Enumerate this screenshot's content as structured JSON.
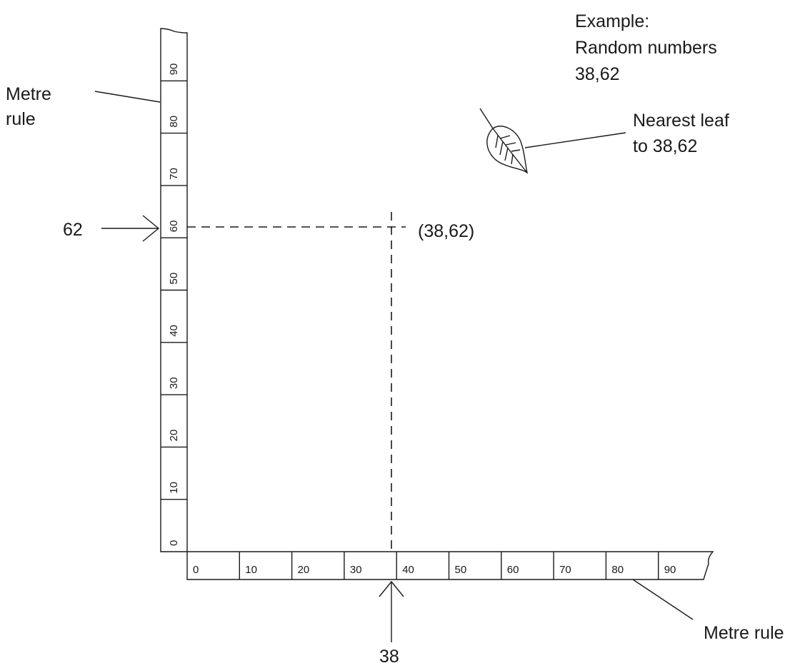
{
  "example": {
    "line1": "Example:",
    "line2": "Random numbers",
    "line3": "38,62"
  },
  "labels": {
    "vertical_rule_line1": "Metre",
    "vertical_rule_line2": "rule",
    "horizontal_rule": "Metre rule",
    "nearest_leaf_line1": "Nearest leaf",
    "nearest_leaf_line2": "to 38,62",
    "coordinate": "(38,62)",
    "y_value": "62",
    "x_value": "38"
  },
  "horizontal_ticks": [
    "0",
    "10",
    "20",
    "30",
    "40",
    "50",
    "60",
    "70",
    "80",
    "90"
  ],
  "vertical_ticks": [
    "0",
    "10",
    "20",
    "30",
    "40",
    "50",
    "60",
    "70",
    "80",
    "90"
  ],
  "point": {
    "x": 38,
    "y": 62
  }
}
